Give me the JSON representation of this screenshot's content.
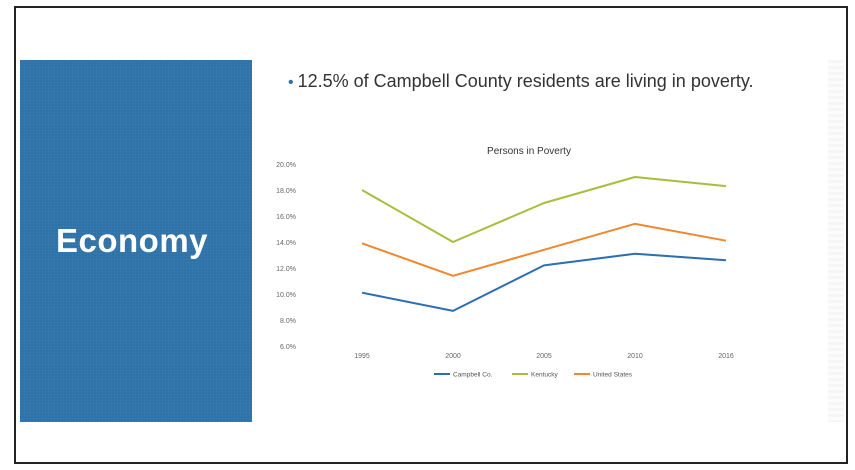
{
  "slide": {
    "title": "Economy",
    "bullet": "12.5% of Campbell County residents are living in poverty."
  },
  "colors": {
    "title_box": "#2f72a8",
    "campbell": "#2e6db4",
    "kentucky": "#a9bd3b",
    "united_states": "#f0862e"
  },
  "chart_data": {
    "type": "line",
    "title": "Persons in Poverty",
    "categories": [
      "1995",
      "2000",
      "2005",
      "2010",
      "2016"
    ],
    "yticks": [
      "6.0%",
      "8.0%",
      "10.0%",
      "12.0%",
      "14.0%",
      "16.0%",
      "18.0%",
      "20.0%"
    ],
    "ylim": [
      6,
      20
    ],
    "legend_position": "bottom",
    "series": [
      {
        "name": "Campbell Co.",
        "values": [
          10.1,
          8.7,
          12.2,
          13.1,
          12.6
        ]
      },
      {
        "name": "Kentucky",
        "values": [
          18.0,
          14.0,
          17.0,
          19.0,
          18.3
        ]
      },
      {
        "name": "United States",
        "values": [
          13.9,
          11.4,
          13.4,
          15.4,
          14.1
        ]
      }
    ]
  }
}
